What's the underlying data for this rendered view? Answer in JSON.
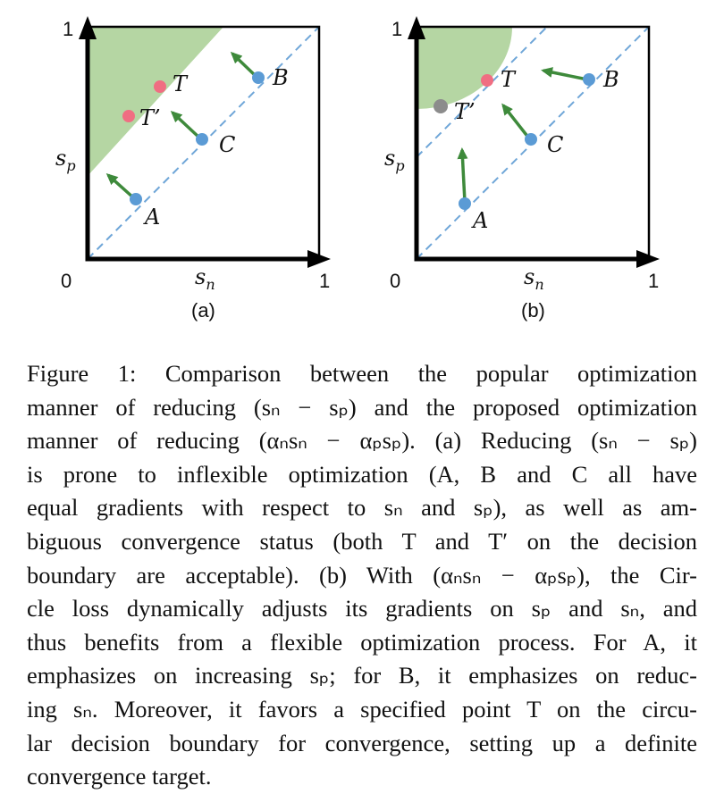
{
  "panel_a": {
    "label": "(a)",
    "y_axis_label": "s_p",
    "x_axis_label": "s_n",
    "origin_label": "0",
    "x_max_label": "1",
    "y_max_label": "1",
    "points": {
      "A": "A",
      "B": "B",
      "C": "C",
      "T": "T",
      "T_prime": "T’"
    }
  },
  "panel_b": {
    "label": "(b)",
    "y_axis_label": "s_p",
    "x_axis_label": "s_n",
    "origin_label": "0",
    "x_max_label": "1",
    "y_max_label": "1",
    "points": {
      "A": "A",
      "B": "B",
      "C": "C",
      "T": "T",
      "T_prime": "T’"
    }
  },
  "colors": {
    "region": "#b5d6a3",
    "point_blue": "#5b9bd5",
    "point_red": "#f06e82",
    "point_gray": "#8c8c8c",
    "arrow_green": "#3e8a3b",
    "dashed_line": "#6fa6d8"
  },
  "caption": {
    "lines": [
      "Figure 1: Comparison between the popular optimization",
      "manner of reducing (sₙ − sₚ) and the proposed optimization",
      "manner of reducing (αₙsₙ − αₚsₚ). (a) Reducing (sₙ − sₚ)",
      "is prone to inflexible optimization (A, B and C all have",
      "equal gradients with respect to sₙ and sₚ), as well as am-",
      "biguous convergence status (both T and T′ on the decision",
      "boundary are acceptable). (b) With (αₙsₙ − αₚsₚ), the Cir-",
      "cle loss dynamically adjusts its gradients on sₚ and sₙ, and",
      "thus benefits from a flexible optimization process. For A, it",
      "emphasizes on increasing sₚ; for B, it emphasizes on reduc-",
      "ing sₙ. Moreover, it favors a specified point T on the circu-",
      "lar decision boundary for convergence, setting up a definite",
      "convergence target."
    ]
  }
}
